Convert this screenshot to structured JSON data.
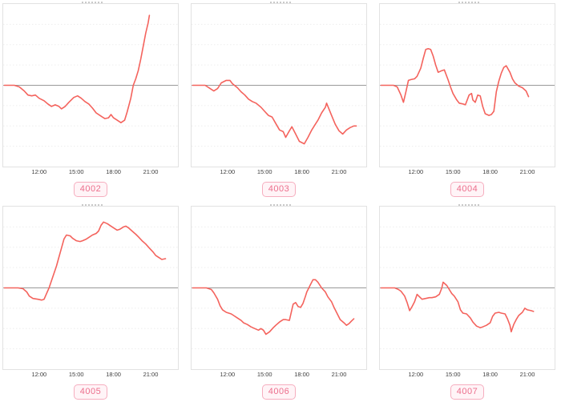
{
  "colors": {
    "series_line": "#f4635d",
    "zero_line": "#999999",
    "gridline": "#ededed",
    "plot_border": "#e2e2e2",
    "tick_text": "#3d3d3d",
    "badge_text": "#ec6e8c",
    "badge_border": "#f6aebf",
    "badge_background": "#fff4f7"
  },
  "chart_data": [
    {
      "type": "line",
      "label": "4002",
      "x_tick_labels": [
        "12:00",
        "15:00",
        "18:00",
        "21:00"
      ],
      "x_tick_hours": [
        12,
        15,
        18,
        21
      ],
      "x_domain_hours": [
        9.1,
        23.2
      ],
      "ylim": [
        -1,
        1
      ],
      "grid_step": 0.25,
      "baseline": 0,
      "x_hours": [
        9.2,
        10.0,
        10.4,
        10.8,
        11.1,
        11.4,
        11.7,
        12.0,
        12.4,
        12.7,
        13.0,
        13.3,
        13.6,
        13.8,
        14.1,
        14.4,
        14.8,
        15.1,
        15.4,
        15.7,
        16.0,
        16.3,
        16.6,
        17.0,
        17.3,
        17.6,
        17.8,
        18.0,
        18.3,
        18.6,
        18.9,
        19.1,
        19.4,
        19.6,
        19.8,
        20.0,
        20.2,
        20.4,
        20.6,
        20.8,
        20.9
      ],
      "y_rel": [
        0,
        0,
        -0.02,
        -0.07,
        -0.12,
        -0.13,
        -0.12,
        -0.16,
        -0.19,
        -0.23,
        -0.26,
        -0.24,
        -0.26,
        -0.29,
        -0.26,
        -0.21,
        -0.15,
        -0.13,
        -0.16,
        -0.2,
        -0.23,
        -0.28,
        -0.34,
        -0.38,
        -0.41,
        -0.4,
        -0.36,
        -0.4,
        -0.43,
        -0.46,
        -0.43,
        -0.33,
        -0.16,
        0,
        0.08,
        0.18,
        0.32,
        0.48,
        0.64,
        0.77,
        0.86
      ]
    },
    {
      "type": "line",
      "label": "4003",
      "x_tick_labels": [
        "12:00",
        "15:00",
        "18:00",
        "21:00"
      ],
      "x_tick_hours": [
        12,
        15,
        18,
        21
      ],
      "x_domain_hours": [
        9.1,
        23.2
      ],
      "ylim": [
        -1,
        1
      ],
      "grid_step": 0.25,
      "baseline": 0,
      "x_hours": [
        9.2,
        10.2,
        10.7,
        10.9,
        11.2,
        11.5,
        11.9,
        12.2,
        12.4,
        12.8,
        13.1,
        13.4,
        13.7,
        14.0,
        14.3,
        14.7,
        15.0,
        15.3,
        15.6,
        15.9,
        16.2,
        16.5,
        16.7,
        17.0,
        17.2,
        17.5,
        17.8,
        18.2,
        18.5,
        18.8,
        19.0,
        19.3,
        19.6,
        19.9,
        20.0,
        20.4,
        20.7,
        21.0,
        21.3,
        21.6,
        21.9,
        22.2,
        22.4
      ],
      "y_rel": [
        0,
        0,
        -0.05,
        -0.07,
        -0.04,
        0.03,
        0.06,
        0.06,
        0.02,
        -0.03,
        -0.08,
        -0.12,
        -0.17,
        -0.2,
        -0.22,
        -0.27,
        -0.32,
        -0.37,
        -0.39,
        -0.47,
        -0.55,
        -0.57,
        -0.64,
        -0.56,
        -0.51,
        -0.6,
        -0.69,
        -0.72,
        -0.64,
        -0.55,
        -0.5,
        -0.43,
        -0.34,
        -0.27,
        -0.22,
        -0.37,
        -0.48,
        -0.56,
        -0.6,
        -0.55,
        -0.52,
        -0.5,
        -0.5
      ]
    },
    {
      "type": "line",
      "label": "4004",
      "x_tick_labels": [
        "12:00",
        "15:00",
        "18:00",
        "21:00"
      ],
      "x_tick_hours": [
        12,
        15,
        18,
        21
      ],
      "x_domain_hours": [
        9.1,
        23.2
      ],
      "ylim": [
        -1,
        1
      ],
      "grid_step": 0.25,
      "baseline": 0,
      "x_hours": [
        9.2,
        10.2,
        10.5,
        10.8,
        11.0,
        11.2,
        11.4,
        11.6,
        11.9,
        12.1,
        12.4,
        12.6,
        12.8,
        13.0,
        13.2,
        13.4,
        13.6,
        13.8,
        14.1,
        14.3,
        14.6,
        14.8,
        15.0,
        15.3,
        15.5,
        15.8,
        16.0,
        16.3,
        16.5,
        16.6,
        16.8,
        17.0,
        17.2,
        17.4,
        17.6,
        17.9,
        18.1,
        18.3,
        18.5,
        18.7,
        18.9,
        19.1,
        19.3,
        19.6,
        19.8,
        20.0,
        20.3,
        20.6,
        20.9,
        21.1
      ],
      "y_rel": [
        0,
        0,
        -0.02,
        -0.12,
        -0.21,
        -0.08,
        0.06,
        0.07,
        0.08,
        0.11,
        0.21,
        0.33,
        0.44,
        0.45,
        0.44,
        0.36,
        0.25,
        0.16,
        0.18,
        0.19,
        0.07,
        -0.02,
        -0.1,
        -0.18,
        -0.22,
        -0.23,
        -0.24,
        -0.12,
        -0.1,
        -0.18,
        -0.21,
        -0.12,
        -0.13,
        -0.26,
        -0.35,
        -0.37,
        -0.36,
        -0.32,
        -0.08,
        0.05,
        0.15,
        0.22,
        0.24,
        0.16,
        0.08,
        0.03,
        -0.01,
        -0.03,
        -0.07,
        -0.14
      ]
    },
    {
      "type": "line",
      "label": "4005",
      "x_tick_labels": [
        "12:00",
        "15:00",
        "18:00",
        "21:00"
      ],
      "x_tick_hours": [
        12,
        15,
        18,
        21
      ],
      "x_domain_hours": [
        9.1,
        23.2
      ],
      "ylim": [
        -1,
        1
      ],
      "grid_step": 0.25,
      "baseline": 0,
      "x_hours": [
        9.2,
        10.3,
        10.7,
        11.0,
        11.2,
        11.5,
        11.9,
        12.2,
        12.4,
        12.6,
        12.8,
        13.0,
        13.2,
        13.4,
        13.6,
        13.8,
        14.0,
        14.2,
        14.5,
        14.7,
        15.0,
        15.3,
        15.5,
        15.8,
        16.0,
        16.3,
        16.6,
        16.8,
        17.0,
        17.2,
        17.5,
        17.8,
        18.1,
        18.3,
        18.5,
        18.8,
        19.0,
        19.2,
        19.5,
        19.8,
        20.0,
        20.3,
        20.6,
        20.9,
        21.2,
        21.4,
        21.7,
        21.9,
        22.2
      ],
      "y_rel": [
        0,
        0,
        -0.01,
        -0.05,
        -0.1,
        -0.13,
        -0.14,
        -0.15,
        -0.14,
        -0.07,
        0,
        0.09,
        0.18,
        0.27,
        0.38,
        0.49,
        0.6,
        0.65,
        0.64,
        0.61,
        0.58,
        0.57,
        0.58,
        0.6,
        0.62,
        0.65,
        0.67,
        0.7,
        0.77,
        0.81,
        0.79,
        0.76,
        0.73,
        0.71,
        0.72,
        0.75,
        0.76,
        0.74,
        0.7,
        0.66,
        0.63,
        0.58,
        0.54,
        0.49,
        0.44,
        0.4,
        0.37,
        0.35,
        0.36
      ]
    },
    {
      "type": "line",
      "label": "4006",
      "x_tick_labels": [
        "12:00",
        "15:00",
        "18:00",
        "21:00"
      ],
      "x_tick_hours": [
        12,
        15,
        18,
        21
      ],
      "x_domain_hours": [
        9.1,
        23.2
      ],
      "ylim": [
        -1,
        1
      ],
      "grid_step": 0.25,
      "baseline": 0,
      "x_hours": [
        9.2,
        10.3,
        10.7,
        10.9,
        11.2,
        11.4,
        11.6,
        11.9,
        12.1,
        12.3,
        12.5,
        12.8,
        13.1,
        13.3,
        13.6,
        13.9,
        14.2,
        14.5,
        14.7,
        14.9,
        15.1,
        15.4,
        15.7,
        15.9,
        16.2,
        16.5,
        16.7,
        17.0,
        17.3,
        17.5,
        17.7,
        17.9,
        18.1,
        18.3,
        18.4,
        18.7,
        18.9,
        19.1,
        19.3,
        19.6,
        19.9,
        20.1,
        20.4,
        20.6,
        20.9,
        21.1,
        21.4,
        21.6,
        21.8,
        22.0,
        22.2
      ],
      "y_rel": [
        0,
        0,
        -0.02,
        -0.06,
        -0.14,
        -0.22,
        -0.27,
        -0.3,
        -0.31,
        -0.32,
        -0.34,
        -0.37,
        -0.4,
        -0.43,
        -0.45,
        -0.48,
        -0.5,
        -0.52,
        -0.5,
        -0.52,
        -0.57,
        -0.54,
        -0.49,
        -0.46,
        -0.42,
        -0.39,
        -0.39,
        -0.4,
        -0.2,
        -0.18,
        -0.23,
        -0.24,
        -0.19,
        -0.1,
        -0.05,
        0.04,
        0.1,
        0.1,
        0.07,
        0,
        -0.05,
        -0.11,
        -0.17,
        -0.24,
        -0.33,
        -0.39,
        -0.43,
        -0.46,
        -0.44,
        -0.41,
        -0.38
      ]
    },
    {
      "type": "line",
      "label": "4007",
      "x_tick_labels": [
        "12:00",
        "15:00",
        "18:00",
        "21:00"
      ],
      "x_tick_hours": [
        12,
        15,
        18,
        21
      ],
      "x_domain_hours": [
        9.1,
        23.2
      ],
      "ylim": [
        -1,
        1
      ],
      "grid_step": 0.25,
      "baseline": 0,
      "x_hours": [
        9.2,
        10.3,
        10.6,
        10.8,
        11.1,
        11.3,
        11.5,
        11.7,
        11.9,
        12.1,
        12.3,
        12.5,
        12.8,
        13.1,
        13.3,
        13.6,
        13.9,
        14.1,
        14.2,
        14.5,
        14.7,
        14.9,
        15.1,
        15.4,
        15.6,
        15.8,
        16.1,
        16.4,
        16.6,
        16.9,
        17.2,
        17.4,
        17.7,
        18.0,
        18.2,
        18.4,
        18.7,
        18.9,
        19.2,
        19.4,
        19.6,
        19.7,
        19.9,
        20.1,
        20.3,
        20.6,
        20.8,
        21.0,
        21.3,
        21.5
      ],
      "y_rel": [
        0,
        0,
        -0.02,
        -0.04,
        -0.1,
        -0.18,
        -0.28,
        -0.23,
        -0.17,
        -0.08,
        -0.11,
        -0.14,
        -0.13,
        -0.12,
        -0.12,
        -0.11,
        -0.08,
        0,
        0.07,
        0.03,
        -0.02,
        -0.07,
        -0.1,
        -0.17,
        -0.27,
        -0.31,
        -0.32,
        -0.37,
        -0.42,
        -0.47,
        -0.49,
        -0.48,
        -0.46,
        -0.43,
        -0.35,
        -0.31,
        -0.3,
        -0.31,
        -0.32,
        -0.38,
        -0.46,
        -0.54,
        -0.45,
        -0.39,
        -0.34,
        -0.3,
        -0.25,
        -0.27,
        -0.28,
        -0.29
      ]
    }
  ]
}
